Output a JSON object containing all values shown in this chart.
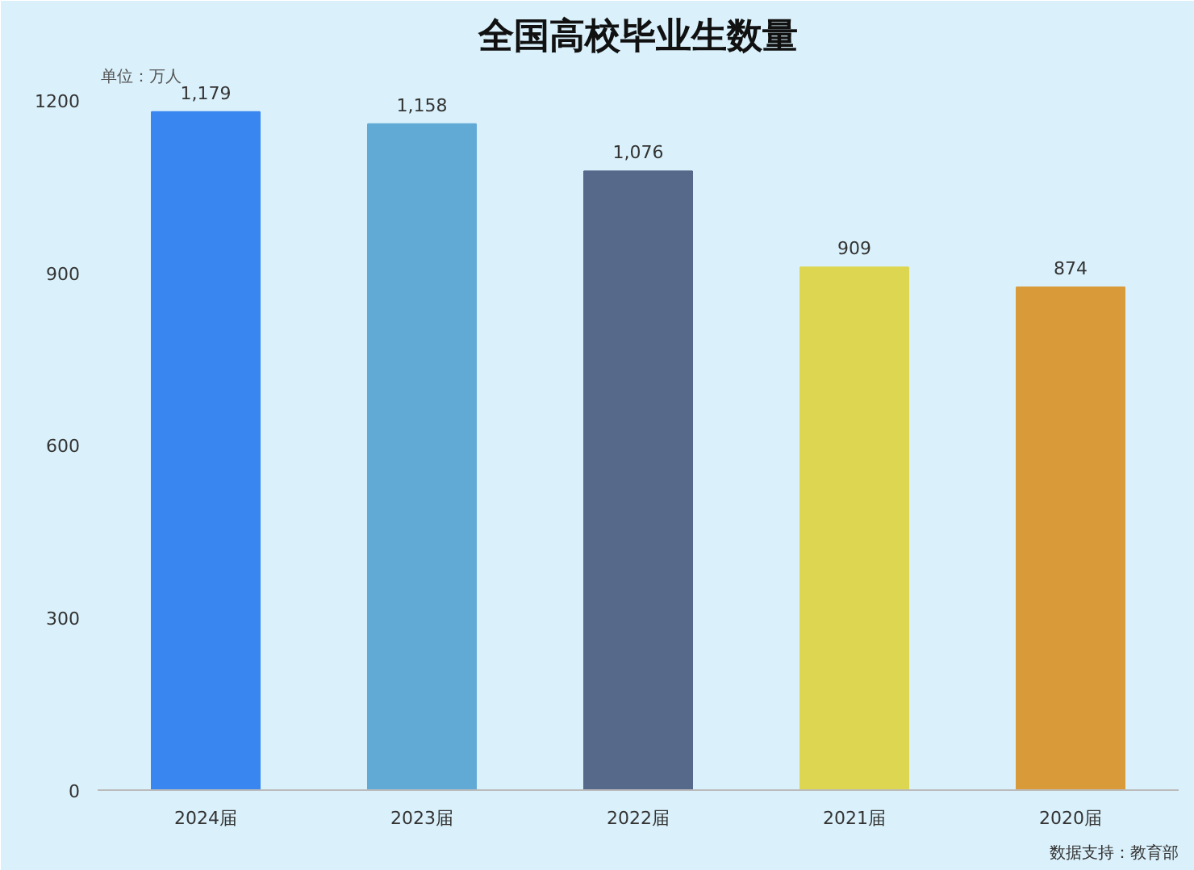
{
  "chart_data": {
    "type": "bar",
    "title": "全国高校毕业生数量",
    "ylabel": "单位：万人",
    "categories": [
      "2024届",
      "2023届",
      "2022届",
      "2021届",
      "2020届"
    ],
    "values": [
      1179,
      1158,
      1076,
      909,
      874
    ],
    "colors": [
      "#3a86f0",
      "#62aad6",
      "#56698a",
      "#ddd651",
      "#d99a3a"
    ],
    "value_labels": [
      "1,179",
      "1,158",
      "1,076",
      "909",
      "874"
    ],
    "ylim": [
      0,
      1260
    ],
    "yticks": [
      0,
      300,
      600,
      900,
      1200
    ],
    "grid": false,
    "annotations": [
      "数据支持：教育部"
    ]
  }
}
